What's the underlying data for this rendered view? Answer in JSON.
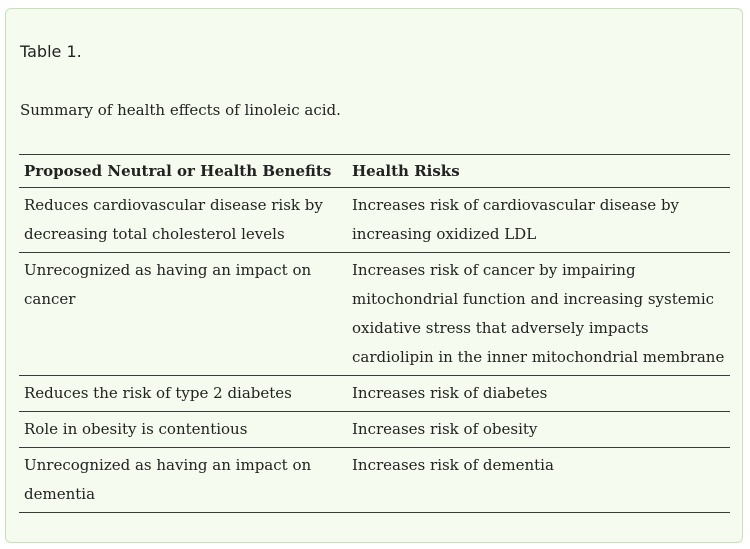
{
  "table_label": "Table 1.",
  "table_caption": "Summary of health effects of linoleic acid.",
  "columns": {
    "benefits": "Proposed Neutral or Health Benefits",
    "risks": "Health Risks"
  },
  "rows": [
    {
      "benefit": "Reduces cardiovascular disease risk by decreasing total cholesterol levels",
      "risk": "Increases risk of cardiovascular disease by increasing oxidized LDL"
    },
    {
      "benefit": "Unrecognized as having an impact on cancer",
      "risk": "Increases risk of cancer by impairing mitochondrial function and increasing systemic oxidative stress that adversely impacts cardiolipin in the inner mitochondrial membrane"
    },
    {
      "benefit": "Reduces the risk of type 2 diabetes",
      "risk": "Increases risk of diabetes"
    },
    {
      "benefit": "Role in obesity is contentious",
      "risk": "Increases risk of obesity"
    },
    {
      "benefit": "Unrecognized as having an impact on dementia",
      "risk": "Increases risk of dementia"
    }
  ]
}
